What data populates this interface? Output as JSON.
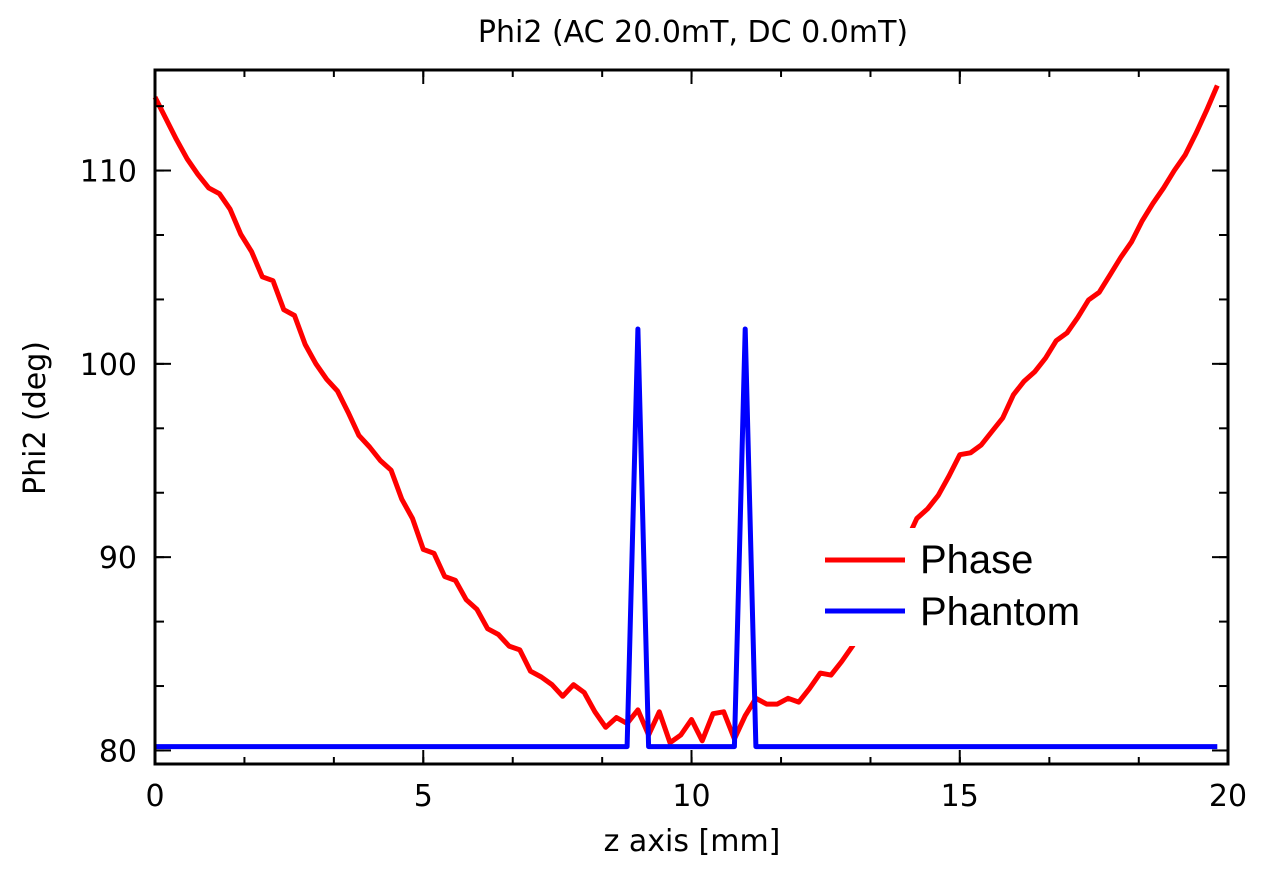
{
  "chart_data": {
    "type": "line",
    "title": "Phi2 (AC 20.0mT, DC  0.0mT)",
    "xlabel": "z axis [mm]",
    "ylabel": "Phi2 (deg)",
    "xlim": [
      0,
      20
    ],
    "ylim": [
      79.3,
      115.2
    ],
    "x_ticks": [
      0,
      5,
      10,
      15,
      20
    ],
    "y_ticks": [
      80,
      90,
      100,
      110
    ],
    "x_minor_step": 1.667,
    "y_minor_step": 3.333,
    "grid": false,
    "legend_position": "center-right",
    "series": [
      {
        "name": "Phase",
        "color": "#ff0000",
        "x": [
          0.0,
          0.2,
          0.4,
          0.6,
          0.8,
          1.0,
          1.2,
          1.4,
          1.6,
          1.8,
          2.0,
          2.2,
          2.4,
          2.6,
          2.8,
          3.0,
          3.2,
          3.4,
          3.6,
          3.8,
          4.0,
          4.2,
          4.4,
          4.6,
          4.8,
          5.0,
          5.2,
          5.4,
          5.6,
          5.8,
          6.0,
          6.2,
          6.4,
          6.6,
          6.8,
          7.0,
          7.2,
          7.4,
          7.6,
          7.8,
          8.0,
          8.2,
          8.4,
          8.6,
          8.8,
          9.0,
          9.2,
          9.4,
          9.6,
          9.8,
          10.0,
          10.2,
          10.4,
          10.6,
          10.8,
          11.0,
          11.2,
          11.4,
          11.6,
          11.8,
          12.0,
          12.2,
          12.4,
          12.6,
          12.8,
          13.0,
          13.2,
          13.4,
          13.6,
          13.8,
          14.0,
          14.2,
          14.4,
          14.6,
          14.8,
          15.0,
          15.2,
          15.4,
          15.6,
          15.8,
          16.0,
          16.2,
          16.4,
          16.6,
          16.8,
          17.0,
          17.2,
          17.4,
          17.6,
          17.8,
          18.0,
          18.2,
          18.4,
          18.6,
          18.8,
          19.0,
          19.2,
          19.4,
          19.6,
          19.8
        ],
        "values": [
          113.8,
          112.7,
          111.6,
          110.6,
          109.8,
          109.1,
          108.8,
          108.0,
          106.7,
          105.8,
          104.5,
          104.3,
          102.8,
          102.5,
          101.0,
          100.0,
          99.2,
          98.6,
          97.5,
          96.3,
          95.7,
          95.0,
          94.5,
          93.0,
          92.0,
          90.4,
          90.2,
          89.0,
          88.8,
          87.8,
          87.3,
          86.3,
          86.0,
          85.4,
          85.2,
          84.1,
          83.8,
          83.4,
          82.8,
          83.4,
          83.0,
          82.0,
          81.2,
          81.7,
          81.4,
          82.1,
          80.8,
          82.0,
          80.4,
          80.8,
          81.6,
          80.5,
          81.9,
          82.0,
          80.6,
          81.8,
          82.7,
          82.4,
          82.4,
          82.7,
          82.5,
          83.2,
          84.0,
          83.9,
          84.6,
          85.4,
          86.4,
          87.6,
          88.6,
          89.6,
          90.8,
          92.0,
          92.5,
          93.2,
          94.2,
          95.3,
          95.4,
          95.8,
          96.5,
          97.2,
          98.4,
          99.1,
          99.6,
          100.3,
          101.2,
          101.6,
          102.4,
          103.3,
          103.7,
          104.6,
          105.5,
          106.3,
          107.4,
          108.3,
          109.1,
          110.0,
          110.8,
          111.9,
          113.1,
          114.4
        ]
      },
      {
        "name": "Phantom",
        "color": "#0000ff",
        "x": [
          0.0,
          8.8,
          9.0,
          9.2,
          10.8,
          11.0,
          11.2,
          19.8
        ],
        "values": [
          80.2,
          80.2,
          101.8,
          80.2,
          80.2,
          101.8,
          80.2,
          80.2
        ]
      }
    ]
  }
}
